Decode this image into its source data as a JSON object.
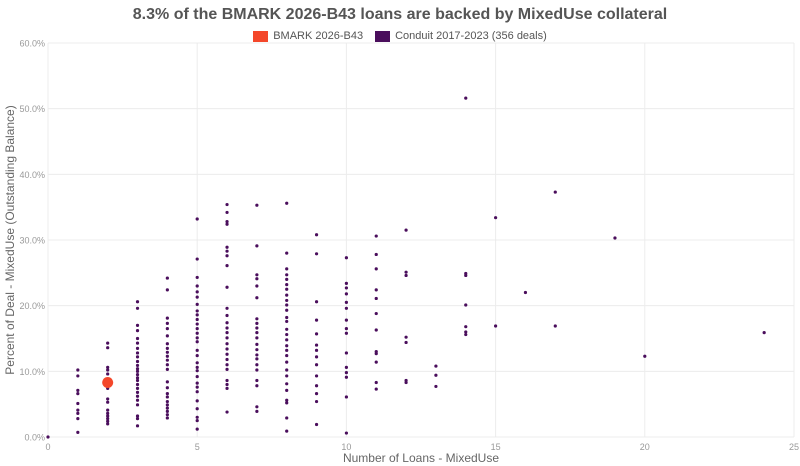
{
  "chart_data": {
    "type": "scatter",
    "title": "8.3% of the BMARK 2026-B43 loans are backed by MixedUse collateral",
    "xlabel": "Number of Loans - MixedUse",
    "ylabel": "Percent of Deal - MixedUse (Outstanding Balance)",
    "xlim": [
      0,
      25
    ],
    "ylim": [
      0,
      60
    ],
    "x_ticks": [
      "0",
      "5",
      "10",
      "15",
      "20",
      "25"
    ],
    "y_ticks": [
      "0.0%",
      "10.0%",
      "20.0%",
      "30.0%",
      "40.0%",
      "50.0%",
      "60.0%"
    ],
    "grid": true,
    "legend_position": "top",
    "series": [
      {
        "name": "BMARK 2026-B43",
        "color": "#F4472A",
        "points": [
          [
            2,
            8.3
          ]
        ]
      },
      {
        "name": "Conduit 2017-2023 (356 deals)",
        "color": "#4A0E5C",
        "points": [
          [
            0,
            0.0
          ],
          [
            1,
            0.7
          ],
          [
            1,
            2.8
          ],
          [
            1,
            3.6
          ],
          [
            1,
            4.1
          ],
          [
            1,
            5.1
          ],
          [
            1,
            6.6
          ],
          [
            1,
            7.1
          ],
          [
            1,
            9.3
          ],
          [
            1,
            10.2
          ],
          [
            2,
            2.0
          ],
          [
            2,
            2.4
          ],
          [
            2,
            2.8
          ],
          [
            2,
            3.2
          ],
          [
            2,
            3.6
          ],
          [
            2,
            4.1
          ],
          [
            2,
            5.3
          ],
          [
            2,
            5.8
          ],
          [
            2,
            7.4
          ],
          [
            2,
            9.6
          ],
          [
            2,
            10.2
          ],
          [
            2,
            10.6
          ],
          [
            2,
            13.6
          ],
          [
            2,
            14.3
          ],
          [
            3,
            1.7
          ],
          [
            3,
            2.8
          ],
          [
            3,
            3.2
          ],
          [
            3,
            4.9
          ],
          [
            3,
            5.6
          ],
          [
            3,
            6.2
          ],
          [
            3,
            6.8
          ],
          [
            3,
            7.4
          ],
          [
            3,
            8.0
          ],
          [
            3,
            8.6
          ],
          [
            3,
            9.0
          ],
          [
            3,
            9.5
          ],
          [
            3,
            10.0
          ],
          [
            3,
            10.4
          ],
          [
            3,
            10.9
          ],
          [
            3,
            11.5
          ],
          [
            3,
            12.2
          ],
          [
            3,
            12.8
          ],
          [
            3,
            13.5
          ],
          [
            3,
            14.3
          ],
          [
            3,
            15.0
          ],
          [
            3,
            16.2
          ],
          [
            3,
            17.0
          ],
          [
            3,
            19.6
          ],
          [
            3,
            20.6
          ],
          [
            4,
            2.9
          ],
          [
            4,
            3.4
          ],
          [
            4,
            3.9
          ],
          [
            4,
            4.4
          ],
          [
            4,
            4.9
          ],
          [
            4,
            5.4
          ],
          [
            4,
            6.1
          ],
          [
            4,
            6.6
          ],
          [
            4,
            7.5
          ],
          [
            4,
            8.4
          ],
          [
            4,
            10.3
          ],
          [
            4,
            11.0
          ],
          [
            4,
            11.7
          ],
          [
            4,
            12.3
          ],
          [
            4,
            12.9
          ],
          [
            4,
            13.5
          ],
          [
            4,
            14.2
          ],
          [
            4,
            15.4
          ],
          [
            4,
            16.5
          ],
          [
            4,
            17.3
          ],
          [
            4,
            18.1
          ],
          [
            4,
            22.4
          ],
          [
            4,
            24.2
          ],
          [
            5,
            1.2
          ],
          [
            5,
            2.5
          ],
          [
            5,
            3.0
          ],
          [
            5,
            4.3
          ],
          [
            5,
            5.5
          ],
          [
            5,
            6.9
          ],
          [
            5,
            7.6
          ],
          [
            5,
            8.2
          ],
          [
            5,
            9.2
          ],
          [
            5,
            10.1
          ],
          [
            5,
            10.6
          ],
          [
            5,
            11.3
          ],
          [
            5,
            12.4
          ],
          [
            5,
            13.2
          ],
          [
            5,
            14.5
          ],
          [
            5,
            15.1
          ],
          [
            5,
            15.8
          ],
          [
            5,
            16.5
          ],
          [
            5,
            17.2
          ],
          [
            5,
            17.9
          ],
          [
            5,
            18.6
          ],
          [
            5,
            19.2
          ],
          [
            5,
            20.2
          ],
          [
            5,
            21.3
          ],
          [
            5,
            22.1
          ],
          [
            5,
            23.0
          ],
          [
            5,
            24.3
          ],
          [
            5,
            27.1
          ],
          [
            5,
            33.2
          ],
          [
            6,
            3.8
          ],
          [
            6,
            7.4
          ],
          [
            6,
            8.0
          ],
          [
            6,
            8.6
          ],
          [
            6,
            10.3
          ],
          [
            6,
            11.0
          ],
          [
            6,
            11.8
          ],
          [
            6,
            12.6
          ],
          [
            6,
            13.4
          ],
          [
            6,
            14.2
          ],
          [
            6,
            15.1
          ],
          [
            6,
            15.9
          ],
          [
            6,
            16.6
          ],
          [
            6,
            17.4
          ],
          [
            6,
            18.5
          ],
          [
            6,
            19.6
          ],
          [
            6,
            22.8
          ],
          [
            6,
            26.1
          ],
          [
            6,
            27.6
          ],
          [
            6,
            28.3
          ],
          [
            6,
            28.9
          ],
          [
            6,
            32.4
          ],
          [
            6,
            32.8
          ],
          [
            6,
            34.2
          ],
          [
            6,
            35.4
          ],
          [
            7,
            3.9
          ],
          [
            7,
            4.6
          ],
          [
            7,
            7.8
          ],
          [
            7,
            8.6
          ],
          [
            7,
            10.2
          ],
          [
            7,
            11.0
          ],
          [
            7,
            11.9
          ],
          [
            7,
            12.5
          ],
          [
            7,
            13.3
          ],
          [
            7,
            14.1
          ],
          [
            7,
            15.1
          ],
          [
            7,
            15.9
          ],
          [
            7,
            16.6
          ],
          [
            7,
            17.3
          ],
          [
            7,
            18.0
          ],
          [
            7,
            21.2
          ],
          [
            7,
            23.0
          ],
          [
            7,
            24.1
          ],
          [
            7,
            24.7
          ],
          [
            7,
            29.1
          ],
          [
            7,
            35.3
          ],
          [
            8,
            0.9
          ],
          [
            8,
            2.9
          ],
          [
            8,
            5.2
          ],
          [
            8,
            5.6
          ],
          [
            8,
            7.1
          ],
          [
            8,
            8.1
          ],
          [
            8,
            9.3
          ],
          [
            8,
            10.2
          ],
          [
            8,
            11.4
          ],
          [
            8,
            12.4
          ],
          [
            8,
            13.2
          ],
          [
            8,
            13.9
          ],
          [
            8,
            14.8
          ],
          [
            8,
            15.6
          ],
          [
            8,
            16.4
          ],
          [
            8,
            17.6
          ],
          [
            8,
            18.2
          ],
          [
            8,
            19.3
          ],
          [
            8,
            20.1
          ],
          [
            8,
            20.8
          ],
          [
            8,
            21.6
          ],
          [
            8,
            22.5
          ],
          [
            8,
            23.2
          ],
          [
            8,
            24.0
          ],
          [
            8,
            24.7
          ],
          [
            8,
            25.6
          ],
          [
            8,
            28.0
          ],
          [
            8,
            35.6
          ],
          [
            9,
            1.9
          ],
          [
            9,
            5.4
          ],
          [
            9,
            6.6
          ],
          [
            9,
            7.8
          ],
          [
            9,
            9.3
          ],
          [
            9,
            11.0
          ],
          [
            9,
            12.2
          ],
          [
            9,
            13.2
          ],
          [
            9,
            14.0
          ],
          [
            9,
            15.7
          ],
          [
            9,
            17.8
          ],
          [
            9,
            20.6
          ],
          [
            9,
            27.9
          ],
          [
            9,
            30.8
          ],
          [
            10,
            0.6
          ],
          [
            10,
            6.1
          ],
          [
            10,
            9.1
          ],
          [
            10,
            9.8
          ],
          [
            10,
            10.6
          ],
          [
            10,
            12.8
          ],
          [
            10,
            15.8
          ],
          [
            10,
            16.5
          ],
          [
            10,
            17.8
          ],
          [
            10,
            19.6
          ],
          [
            10,
            20.5
          ],
          [
            10,
            21.8
          ],
          [
            10,
            22.7
          ],
          [
            10,
            23.4
          ],
          [
            10,
            27.3
          ],
          [
            11,
            7.3
          ],
          [
            11,
            8.3
          ],
          [
            11,
            11.4
          ],
          [
            11,
            12.7
          ],
          [
            11,
            13.0
          ],
          [
            11,
            16.3
          ],
          [
            11,
            18.8
          ],
          [
            11,
            21.1
          ],
          [
            11,
            22.4
          ],
          [
            11,
            25.6
          ],
          [
            11,
            27.8
          ],
          [
            11,
            30.6
          ],
          [
            12,
            8.3
          ],
          [
            12,
            8.6
          ],
          [
            12,
            14.4
          ],
          [
            12,
            15.2
          ],
          [
            12,
            24.6
          ],
          [
            12,
            25.1
          ],
          [
            12,
            31.5
          ],
          [
            13,
            7.7
          ],
          [
            13,
            9.4
          ],
          [
            13,
            10.8
          ],
          [
            14,
            15.6
          ],
          [
            14,
            16.0
          ],
          [
            14,
            16.8
          ],
          [
            14,
            20.1
          ],
          [
            14,
            24.6
          ],
          [
            14,
            24.9
          ],
          [
            14,
            51.6
          ],
          [
            15,
            16.9
          ],
          [
            15,
            33.4
          ],
          [
            16,
            22.0
          ],
          [
            17,
            16.9
          ],
          [
            17,
            37.3
          ],
          [
            19,
            30.3
          ],
          [
            20,
            12.3
          ],
          [
            24,
            15.9
          ]
        ]
      }
    ]
  },
  "legend": [
    {
      "label": "BMARK 2026-B43",
      "color": "#F4472A"
    },
    {
      "label": "Conduit 2017-2023 (356 deals)",
      "color": "#4A0E5C"
    }
  ]
}
